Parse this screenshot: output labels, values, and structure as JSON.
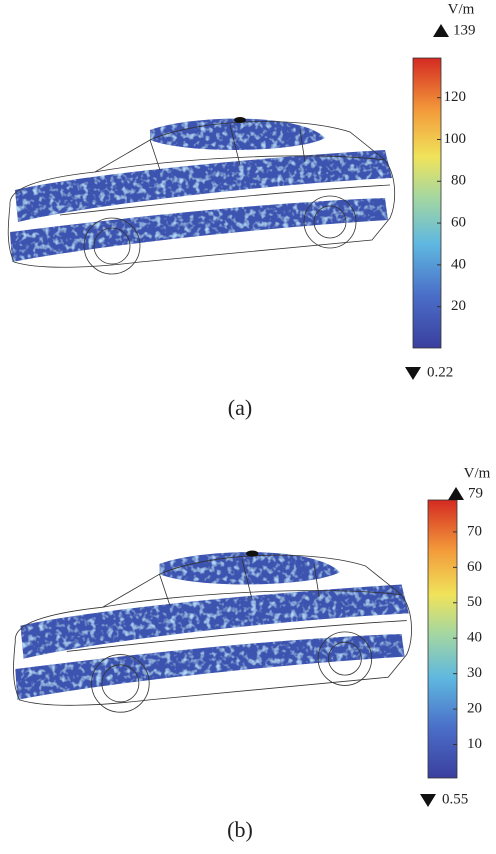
{
  "chart_data": [
    {
      "type": "colorbar",
      "unit": "V/m",
      "ylim": [
        0.22,
        139
      ],
      "yticks": [
        20,
        40,
        60,
        80,
        100,
        120
      ],
      "caption": "(a)"
    },
    {
      "type": "colorbar",
      "unit": "V/m",
      "ylim": [
        0.55,
        79
      ],
      "yticks": [
        10,
        20,
        30,
        40,
        50,
        60,
        70
      ],
      "caption": "(b)"
    }
  ]
}
